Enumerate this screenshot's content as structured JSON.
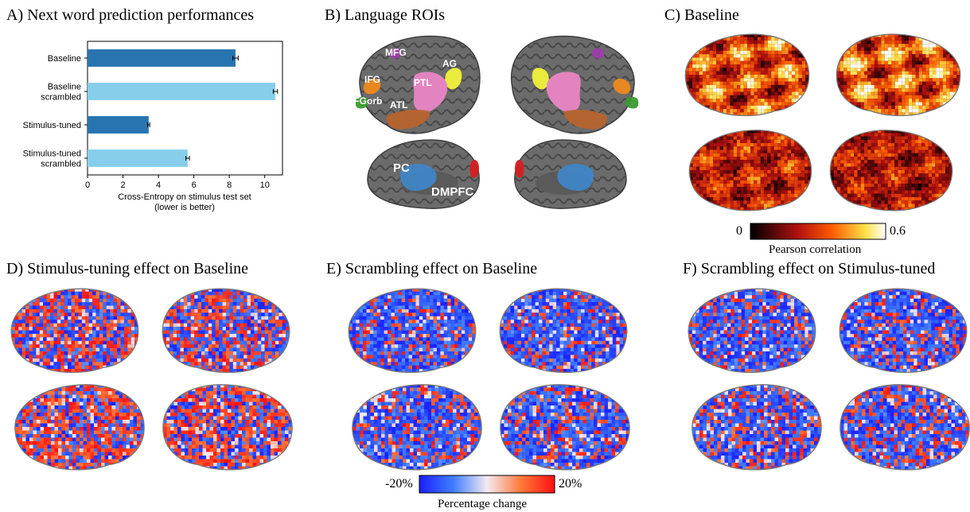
{
  "panels": {
    "a": {
      "title": "A) Next word prediction performances"
    },
    "b": {
      "title": "B) Language ROIs"
    },
    "c": {
      "title": "C) Baseline"
    },
    "d": {
      "title": "D) Stimulus-tuning effect on Baseline"
    },
    "e": {
      "title": "E) Scrambling effect on Baseline"
    },
    "f": {
      "title": "F) Scrambling effect on Stimulus-tuned"
    }
  },
  "chart_data": {
    "type": "bar",
    "orientation": "horizontal",
    "categories": [
      [
        "Baseline"
      ],
      [
        "Baseline",
        "scrambled"
      ],
      [
        "Stimulus-tuned"
      ],
      [
        "Stimulus-tuned",
        "scrambled"
      ]
    ],
    "values": [
      8.35,
      10.6,
      3.45,
      5.65
    ],
    "errors": [
      0.15,
      0.12,
      0.06,
      0.1
    ],
    "colors": [
      "#2874b0",
      "#87ceeb",
      "#2874b0",
      "#87ceeb"
    ],
    "xlabel": [
      "Cross-Entropy on stimulus test set",
      "(lower is better)"
    ],
    "xlim": [
      0,
      11
    ],
    "xticks": [
      0,
      2,
      4,
      6,
      8,
      10
    ]
  },
  "rois": {
    "labels": [
      "MFG",
      "AG",
      "IFG",
      "PTL",
      "IFGorb",
      "ATL",
      "PC",
      "DMPFC"
    ],
    "colors": {
      "MFG": "#9a3fa8",
      "AG": "#f2f23c",
      "IFG": "#f08a1c",
      "PTL": "#ea86c6",
      "IFGorb": "#3a9a2f",
      "ATL": "#b8642e",
      "PC": "#3f86c6",
      "DMPFC": "#d61f1f"
    }
  },
  "colorbars": {
    "pearson": {
      "min": "0",
      "max": "0.6",
      "label": "Pearson correlation"
    },
    "percentage": {
      "min": "-20%",
      "max": "20%",
      "label": "Percentage change"
    }
  }
}
